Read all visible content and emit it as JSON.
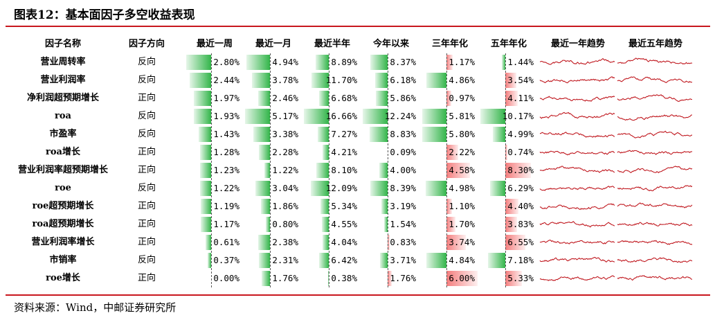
{
  "title": "图表12：基本面因子多空收益表现",
  "source": "资料来源：Wind，中邮证券研究所",
  "colors": {
    "positive": "#33b54a",
    "negative": "#f47d7d",
    "spark": "#c0181f",
    "rule": "#c8161d"
  },
  "headers": {
    "name": "因子名称",
    "direction": "因子方向",
    "recent_week": "最近一周",
    "recent_month": "最近一月",
    "recent_half_year": "最近半年",
    "ytd": "今年以来",
    "three_year_ann": "三年年化",
    "five_year_ann": "五年年化",
    "trend_1y": "最近一年趋势",
    "trend_5y": "最近五年趋势"
  },
  "chart_data": {
    "type": "table",
    "columns": [
      "因子名称",
      "因子方向",
      "最近一周",
      "最近一月",
      "最近半年",
      "今年以来",
      "三年年化",
      "五年年化",
      "最近一年趋势",
      "最近五年趋势"
    ],
    "rows": [
      {
        "name": "营业周转率",
        "direction": "反向",
        "values": [
          2.8,
          4.94,
          8.89,
          8.37,
          -1.17,
          1.44
        ],
        "labels": [
          "2.80%",
          "4.94%",
          "8.89%",
          "8.37%",
          "1.17%",
          "1.44%"
        ]
      },
      {
        "name": "营业利润率",
        "direction": "反向",
        "values": [
          2.44,
          3.78,
          11.7,
          6.18,
          4.86,
          -3.54
        ],
        "labels": [
          "2.44%",
          "3.78%",
          "11.70%",
          "6.18%",
          "4.86%",
          "3.54%"
        ]
      },
      {
        "name": "净利润超预期增长",
        "direction": "正向",
        "values": [
          1.97,
          2.46,
          6.68,
          5.86,
          -0.97,
          -4.11
        ],
        "labels": [
          "1.97%",
          "2.46%",
          "6.68%",
          "5.86%",
          "0.97%",
          "4.11%"
        ]
      },
      {
        "name": "roa",
        "direction": "反向",
        "values": [
          1.93,
          5.17,
          16.66,
          12.24,
          5.81,
          10.17
        ],
        "labels": [
          "1.93%",
          "5.17%",
          "16.66%",
          "12.24%",
          "5.81%",
          "10.17%"
        ]
      },
      {
        "name": "市盈率",
        "direction": "反向",
        "values": [
          1.43,
          3.38,
          7.27,
          8.83,
          5.8,
          4.99
        ],
        "labels": [
          "1.43%",
          "3.38%",
          "7.27%",
          "8.83%",
          "5.80%",
          "4.99%"
        ]
      },
      {
        "name": "roa增长",
        "direction": "正向",
        "values": [
          1.28,
          2.28,
          4.21,
          0.09,
          -2.22,
          -0.74
        ],
        "labels": [
          "1.28%",
          "2.28%",
          "4.21%",
          "0.09%",
          "2.22%",
          "0.74%"
        ]
      },
      {
        "name": "营业利润率超预期增长",
        "direction": "正向",
        "values": [
          1.23,
          1.22,
          8.1,
          4.0,
          -4.58,
          -8.3
        ],
        "labels": [
          "1.23%",
          "1.22%",
          "8.10%",
          "4.00%",
          "4.58%",
          "8.30%"
        ]
      },
      {
        "name": "roe",
        "direction": "反向",
        "values": [
          1.22,
          3.04,
          12.09,
          8.39,
          4.98,
          6.29
        ],
        "labels": [
          "1.22%",
          "3.04%",
          "12.09%",
          "8.39%",
          "4.98%",
          "6.29%"
        ]
      },
      {
        "name": "roe超预期增长",
        "direction": "正向",
        "values": [
          1.19,
          1.86,
          5.34,
          3.19,
          -1.1,
          -4.4
        ],
        "labels": [
          "1.19%",
          "1.86%",
          "5.34%",
          "3.19%",
          "1.10%",
          "4.40%"
        ]
      },
      {
        "name": "roa超预期增长",
        "direction": "正向",
        "values": [
          1.17,
          0.8,
          4.55,
          1.54,
          -1.7,
          -3.83
        ],
        "labels": [
          "1.17%",
          "0.80%",
          "4.55%",
          "1.54%",
          "1.70%",
          "3.83%"
        ]
      },
      {
        "name": "营业利润率增长",
        "direction": "正向",
        "values": [
          0.61,
          2.38,
          4.04,
          -0.83,
          -3.74,
          -6.55
        ],
        "labels": [
          "0.61%",
          "2.38%",
          "4.04%",
          "0.83%",
          "3.74%",
          "6.55%"
        ]
      },
      {
        "name": "市销率",
        "direction": "反向",
        "values": [
          0.37,
          2.31,
          6.42,
          3.71,
          4.84,
          7.18
        ],
        "labels": [
          "0.37%",
          "2.31%",
          "6.42%",
          "3.71%",
          "4.84%",
          "7.18%"
        ]
      },
      {
        "name": "roe增长",
        "direction": "正向",
        "values": [
          0.0,
          1.76,
          0.38,
          -1.76,
          -6.0,
          -5.33
        ],
        "labels": [
          "0.00%",
          "1.76%",
          "0.38%",
          "1.76%",
          "6.00%",
          "5.33%"
        ]
      }
    ]
  }
}
